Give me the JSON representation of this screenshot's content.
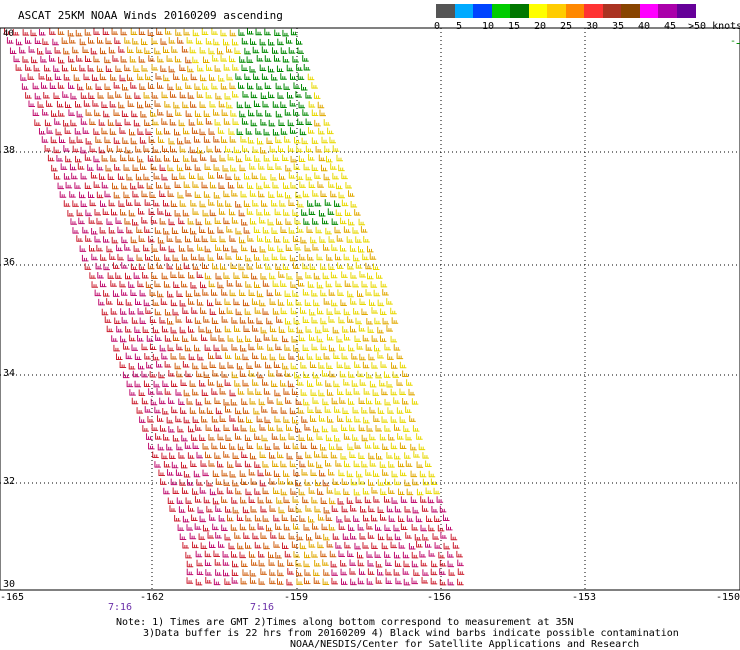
{
  "title": "ASCAT 25KM NOAA Winds 20160209 ascending",
  "colorbar": {
    "colors": [
      "#555555",
      "#00aaff",
      "#0044ff",
      "#00cc00",
      "#007700",
      "#ffff00",
      "#ffcc00",
      "#ff8800",
      "#ff3333",
      "#aa3322",
      "#884400",
      "#ff00ff",
      "#aa00aa",
      "#660099"
    ],
    "labels": [
      "0",
      "5",
      "10",
      "15",
      "20",
      "25",
      "30",
      "35",
      "40",
      "45",
      ">50 knots"
    ]
  },
  "lat_labels": [
    "38",
    "36",
    "34",
    "32",
    "30"
  ],
  "lon_labels": [
    "-165",
    "-162",
    "-159",
    "-156",
    "-153",
    "-150"
  ],
  "corner_label": "40",
  "time_labels": [
    "7:16",
    "7:16"
  ],
  "notes": {
    "line1": "Note: 1) Times are GMT 2)Times along bottom correspond to measurement at 35N",
    "line2": "3)Data buffer is 22 hrs from 20160209 4) Black wind barbs indicate possible contamination",
    "line3": "NOAA/NESDIS/Center for Satellite Applications and Research"
  },
  "wind_colors": {
    "green": "#008800",
    "yellow": "#e8d800",
    "gold": "#e0a800",
    "orange": "#d06010",
    "red": "#cc2030",
    "magenta": "#c01070"
  }
}
